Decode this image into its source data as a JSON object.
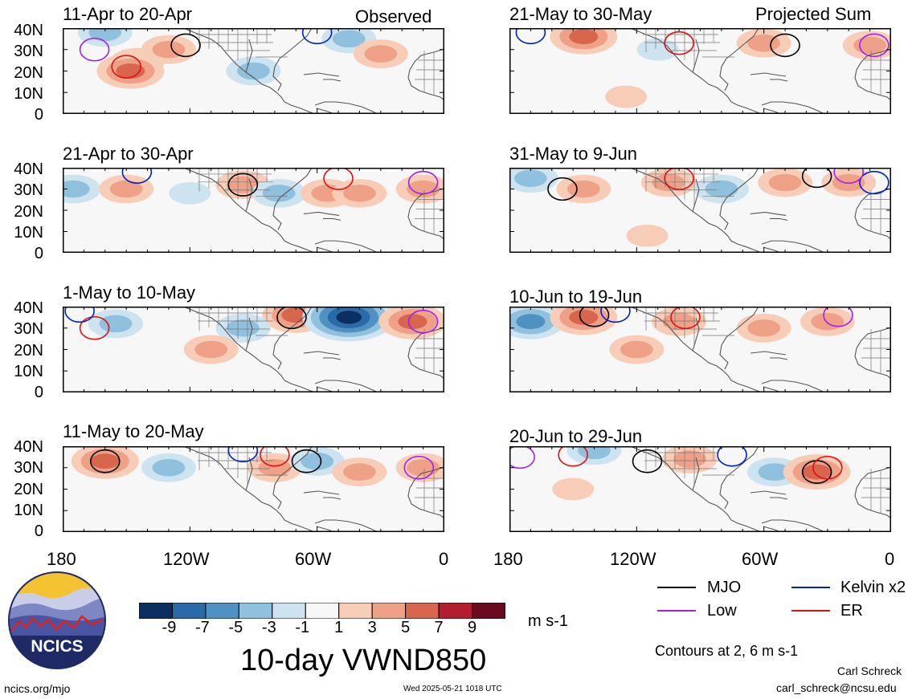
{
  "chart_data": [
    {
      "type": "heatmap",
      "title": "11-Apr to 20-Apr",
      "panel": "observed",
      "corner_label": "Observed",
      "anomalies": [
        {
          "lon": -145,
          "lat": 24,
          "value": 3
        },
        {
          "lon": -148,
          "lat": 20,
          "value": 5
        },
        {
          "lon": -90,
          "lat": 20,
          "value": -3
        },
        {
          "lon": -160,
          "lat": 38,
          "value": -3
        },
        {
          "lon": -130,
          "lat": 30,
          "value": 3
        },
        {
          "lon": -45,
          "lat": 35,
          "value": -3
        },
        {
          "lon": -30,
          "lat": 28,
          "value": 3
        }
      ],
      "contours": [
        {
          "type": "MJO",
          "lon": -122,
          "lat": 32
        },
        {
          "type": "ER",
          "lon": -150,
          "lat": 22
        },
        {
          "type": "Kelvin x2",
          "lon": -60,
          "lat": 38
        },
        {
          "type": "Low",
          "lon": -165,
          "lat": 30
        }
      ]
    },
    {
      "type": "heatmap",
      "title": "21-Apr to 30-Apr",
      "panel": "observed",
      "anomalies": [
        {
          "lon": -175,
          "lat": 30,
          "value": -3
        },
        {
          "lon": -150,
          "lat": 30,
          "value": 3
        },
        {
          "lon": -120,
          "lat": 28,
          "value": -1
        },
        {
          "lon": -95,
          "lat": 32,
          "value": 3
        },
        {
          "lon": -78,
          "lat": 28,
          "value": -3
        },
        {
          "lon": -55,
          "lat": 28,
          "value": 3
        },
        {
          "lon": -40,
          "lat": 28,
          "value": 3
        },
        {
          "lon": -10,
          "lat": 30,
          "value": 3
        }
      ],
      "contours": [
        {
          "type": "MJO",
          "lon": -95,
          "lat": 32
        },
        {
          "type": "ER",
          "lon": -50,
          "lat": 35
        },
        {
          "type": "Kelvin x2",
          "lon": -145,
          "lat": 38
        },
        {
          "type": "Low",
          "lon": -10,
          "lat": 33
        }
      ]
    },
    {
      "type": "heatmap",
      "title": "1-May to 10-May",
      "panel": "observed",
      "anomalies": [
        {
          "lon": -155,
          "lat": 32,
          "value": -3
        },
        {
          "lon": -70,
          "lat": 36,
          "value": 5
        },
        {
          "lon": -45,
          "lat": 35,
          "value": -9
        },
        {
          "lon": -15,
          "lat": 33,
          "value": 5
        },
        {
          "lon": -95,
          "lat": 30,
          "value": -3
        },
        {
          "lon": -110,
          "lat": 20,
          "value": 3
        }
      ],
      "contours": [
        {
          "type": "MJO",
          "lon": -72,
          "lat": 35
        },
        {
          "type": "ER",
          "lon": -165,
          "lat": 30
        },
        {
          "type": "Kelvin x2",
          "lon": -172,
          "lat": 38
        },
        {
          "type": "Low",
          "lon": -10,
          "lat": 33
        }
      ]
    },
    {
      "type": "heatmap",
      "title": "11-May to 20-May",
      "panel": "observed",
      "anomalies": [
        {
          "lon": -160,
          "lat": 33,
          "value": 5
        },
        {
          "lon": -130,
          "lat": 30,
          "value": -3
        },
        {
          "lon": -80,
          "lat": 30,
          "value": 3
        },
        {
          "lon": -60,
          "lat": 33,
          "value": -3
        },
        {
          "lon": -40,
          "lat": 28,
          "value": 3
        },
        {
          "lon": -10,
          "lat": 30,
          "value": 3
        }
      ],
      "contours": [
        {
          "type": "MJO",
          "lon": -160,
          "lat": 33
        },
        {
          "type": "MJO",
          "lon": -65,
          "lat": 33
        },
        {
          "type": "ER",
          "lon": -80,
          "lat": 36
        },
        {
          "type": "Kelvin x2",
          "lon": -95,
          "lat": 38
        },
        {
          "type": "Low",
          "lon": -12,
          "lat": 30
        }
      ]
    },
    {
      "type": "heatmap",
      "title": "21-May to 30-May",
      "panel": "projected",
      "corner_label": "Projected Sum",
      "anomalies": [
        {
          "lon": -145,
          "lat": 36,
          "value": 5
        },
        {
          "lon": -110,
          "lat": 30,
          "value": -1
        },
        {
          "lon": -60,
          "lat": 33,
          "value": 3
        },
        {
          "lon": -10,
          "lat": 32,
          "value": 3
        },
        {
          "lon": -125,
          "lat": 8,
          "value": 1
        }
      ],
      "contours": [
        {
          "type": "MJO",
          "lon": -50,
          "lat": 32
        },
        {
          "type": "ER",
          "lon": -100,
          "lat": 33
        },
        {
          "type": "Kelvin x2",
          "lon": -170,
          "lat": 38
        },
        {
          "type": "Low",
          "lon": -8,
          "lat": 32
        }
      ]
    },
    {
      "type": "heatmap",
      "title": "31-May to 9-Jun",
      "panel": "projected",
      "anomalies": [
        {
          "lon": -170,
          "lat": 35,
          "value": -3
        },
        {
          "lon": -145,
          "lat": 30,
          "value": 3
        },
        {
          "lon": -105,
          "lat": 33,
          "value": 3
        },
        {
          "lon": -80,
          "lat": 30,
          "value": -3
        },
        {
          "lon": -50,
          "lat": 33,
          "value": 3
        },
        {
          "lon": -20,
          "lat": 33,
          "value": 3
        },
        {
          "lon": -115,
          "lat": 8,
          "value": 1
        }
      ],
      "contours": [
        {
          "type": "MJO",
          "lon": -155,
          "lat": 30
        },
        {
          "type": "MJO",
          "lon": -35,
          "lat": 36
        },
        {
          "type": "ER",
          "lon": -100,
          "lat": 35
        },
        {
          "type": "Kelvin x2",
          "lon": -8,
          "lat": 33
        },
        {
          "type": "Low",
          "lon": -20,
          "lat": 38
        }
      ]
    },
    {
      "type": "heatmap",
      "title": "10-Jun to 19-Jun",
      "panel": "projected",
      "anomalies": [
        {
          "lon": -170,
          "lat": 33,
          "value": -5
        },
        {
          "lon": -145,
          "lat": 35,
          "value": 5
        },
        {
          "lon": -100,
          "lat": 33,
          "value": 3
        },
        {
          "lon": -60,
          "lat": 30,
          "value": 3
        },
        {
          "lon": -30,
          "lat": 33,
          "value": 3
        },
        {
          "lon": -120,
          "lat": 20,
          "value": 3
        }
      ],
      "contours": [
        {
          "type": "MJO",
          "lon": -140,
          "lat": 36
        },
        {
          "type": "ER",
          "lon": -97,
          "lat": 35
        },
        {
          "type": "Kelvin x2",
          "lon": -130,
          "lat": 38
        },
        {
          "type": "Low",
          "lon": -25,
          "lat": 36
        }
      ]
    },
    {
      "type": "heatmap",
      "title": "20-Jun to 29-Jun",
      "panel": "projected",
      "anomalies": [
        {
          "lon": -140,
          "lat": 38,
          "value": -3
        },
        {
          "lon": -95,
          "lat": 34,
          "value": 3
        },
        {
          "lon": -55,
          "lat": 28,
          "value": -3
        },
        {
          "lon": -35,
          "lat": 28,
          "value": 5
        },
        {
          "lon": -150,
          "lat": 20,
          "value": 1
        }
      ],
      "contours": [
        {
          "type": "MJO",
          "lon": -115,
          "lat": 33
        },
        {
          "type": "MJO",
          "lon": -35,
          "lat": 28
        },
        {
          "type": "ER",
          "lon": -150,
          "lat": 36
        },
        {
          "type": "ER",
          "lon": -30,
          "lat": 30
        },
        {
          "type": "Kelvin x2",
          "lon": -75,
          "lat": 36
        },
        {
          "type": "Low",
          "lon": -175,
          "lat": 35
        }
      ]
    }
  ],
  "axes": {
    "y_ticks": [
      "40N",
      "30N",
      "20N",
      "10N",
      "0"
    ],
    "x_ticks": [
      "180",
      "120W",
      "60W",
      "0"
    ],
    "lon_range": [
      -180,
      0
    ],
    "lat_range": [
      0,
      40
    ]
  },
  "colorbar": {
    "levels": [
      -11,
      -9,
      -7,
      -5,
      -3,
      -1,
      1,
      3,
      5,
      7,
      9,
      11
    ],
    "tick_labels": [
      "-9",
      "-7",
      "-5",
      "-3",
      "-1",
      "1",
      "3",
      "5",
      "7",
      "9"
    ],
    "colors": [
      "#0a2f60",
      "#2a6aa8",
      "#4f91c2",
      "#8fc0dd",
      "#cde3ef",
      "#f7f7f7",
      "#f8cdb7",
      "#eea186",
      "#d8654d",
      "#b31e2f",
      "#6a0a1f"
    ],
    "units": "m s-1"
  },
  "title": "10-day VWND850",
  "legend": {
    "items": [
      {
        "label": "MJO",
        "color": "#000000"
      },
      {
        "label": "Kelvin x2",
        "color": "#0020c8"
      },
      {
        "label": "Low",
        "color": "#a020f0"
      },
      {
        "label": "ER",
        "color": "#e01010"
      }
    ],
    "note": "Contours at 2, 6 m s-1"
  },
  "footer": {
    "left": "ncics.org/mjo",
    "center": "Wed 2025-05-21 1018 UTC",
    "author": "Carl Schreck",
    "email": "carl_schreck@ncsu.edu"
  },
  "logo": {
    "text": "NCICS"
  }
}
